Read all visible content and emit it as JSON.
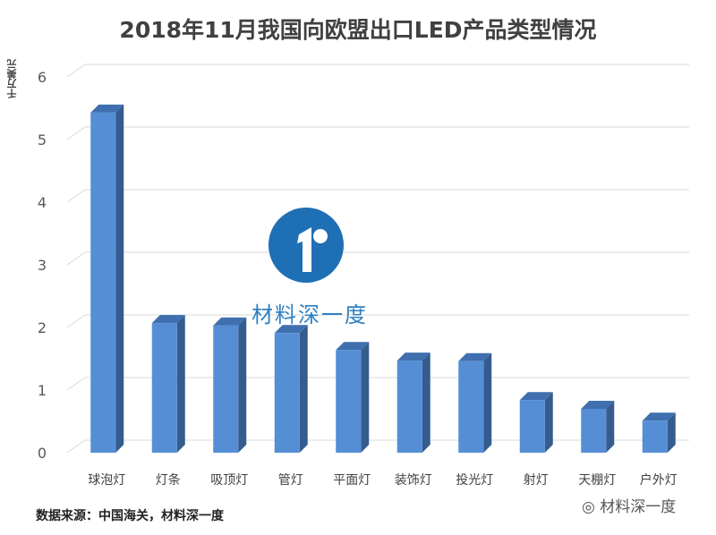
{
  "chart_data": {
    "type": "bar",
    "title": "2018年11月我国向欧盟出口LED产品类型情况",
    "ylabel": "千万美元",
    "xlabel": "",
    "ylim": [
      0,
      6
    ],
    "yticks": [
      0,
      1,
      2,
      3,
      4,
      5,
      6
    ],
    "grid": true,
    "categories": [
      "球泡灯",
      "灯条",
      "吸顶灯",
      "管灯",
      "平面灯",
      "装饰灯",
      "投光灯",
      "射灯",
      "天棚灯",
      "户外灯"
    ],
    "values": [
      5.43,
      2.07,
      2.03,
      1.91,
      1.64,
      1.47,
      1.46,
      0.84,
      0.7,
      0.51
    ],
    "colors": {
      "front": "#558ed5",
      "side": "#345c8f",
      "top": "#3f6fae",
      "grid": "#d9d9d9"
    }
  },
  "source": "数据来源：中国海关，材料深一度",
  "watermark": "材料深一度",
  "footer_watermark": "材料深一度"
}
